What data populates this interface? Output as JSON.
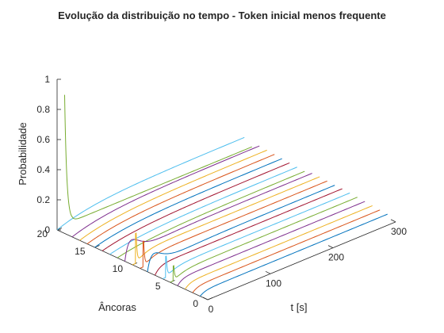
{
  "chart_data": {
    "type": "line",
    "title": "Evolução da distribuição no tempo - Token inicial menos frequente",
    "xlabel": "t [s]",
    "ylabel": "Âncoras",
    "zlabel": "Probabilidade",
    "xlim": [
      0,
      300
    ],
    "ylim": [
      0,
      20
    ],
    "zlim": [
      0,
      1
    ],
    "xticks": [
      "0",
      "100",
      "200",
      "300"
    ],
    "yticks": [
      "0",
      "5",
      "10",
      "15",
      "20"
    ],
    "zticks": [
      "0",
      "0.2",
      "0.4",
      "0.6",
      "0.8",
      "1"
    ],
    "colors": [
      "#0072BD",
      "#D95319",
      "#EDB120",
      "#7E2F8E",
      "#77AC30",
      "#4DBEEE",
      "#A2142F"
    ],
    "series": [
      {
        "anchor": 1,
        "shape": "fast",
        "peak": 0.0,
        "final": 0.03
      },
      {
        "anchor": 2,
        "shape": "fast",
        "peak": 0.0,
        "final": 0.035
      },
      {
        "anchor": 3,
        "shape": "fast",
        "peak": 0.0,
        "final": 0.04
      },
      {
        "anchor": 4,
        "shape": "fast",
        "peak": 0.0,
        "final": 0.045
      },
      {
        "anchor": 5,
        "shape": "spike",
        "peak": 0.1,
        "final": 0.05
      },
      {
        "anchor": 6,
        "shape": "spike",
        "peak": 0.14,
        "final": 0.055
      },
      {
        "anchor": 7,
        "shape": "fast",
        "peak": 0.0,
        "final": 0.06
      },
      {
        "anchor": 8,
        "shape": "bump",
        "peak": 0.1,
        "final": 0.06
      },
      {
        "anchor": 9,
        "shape": "spike",
        "peak": 0.17,
        "final": 0.065
      },
      {
        "anchor": 10,
        "shape": "spike",
        "peak": 0.2,
        "final": 0.07
      },
      {
        "anchor": 11,
        "shape": "bump",
        "peak": 0.12,
        "final": 0.07
      },
      {
        "anchor": 12,
        "shape": "rise",
        "peak": 0.0,
        "final": 0.06
      },
      {
        "anchor": 13,
        "shape": "rise",
        "peak": 0.0,
        "final": 0.065
      },
      {
        "anchor": 14,
        "shape": "rise",
        "peak": 0.0,
        "final": 0.07
      },
      {
        "anchor": 15,
        "shape": "rise",
        "peak": 0.0,
        "final": 0.075
      },
      {
        "anchor": 16,
        "shape": "rise",
        "peak": 0.0,
        "final": 0.08
      },
      {
        "anchor": 17,
        "shape": "rise",
        "peak": 0.0,
        "final": 0.085
      },
      {
        "anchor": 18,
        "shape": "rise",
        "peak": 0.0,
        "final": 0.09
      },
      {
        "anchor": 19,
        "shape": "decay",
        "peak": 0.92,
        "final": 0.06
      },
      {
        "anchor": 20,
        "shape": "rise",
        "peak": 0.0,
        "final": 0.1
      }
    ]
  }
}
